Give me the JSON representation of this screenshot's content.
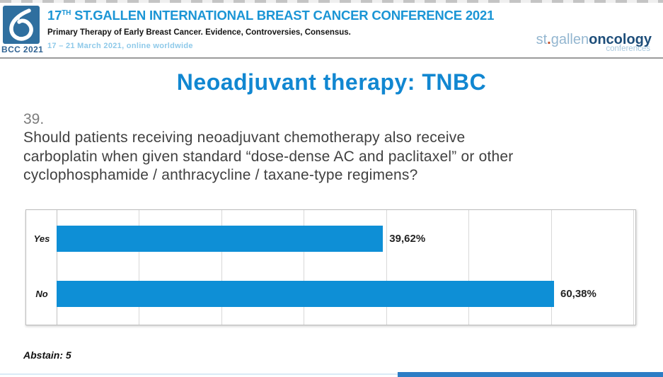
{
  "header": {
    "logo_badge": {
      "label": "BCC 2021"
    },
    "title_prefix": "17",
    "title_sup": "TH",
    "title_main": " ST.GALLEN INTERNATIONAL BREAST CANCER CONFERENCE 2021",
    "subtitle": "Primary Therapy of Early Breast Cancer. Evidence, Controversies, Consensus.",
    "dates": "17 – 21 March 2021, online worldwide",
    "brand": {
      "st": "st",
      "dot": ".",
      "gallen": "gallen",
      "oncology": "oncology",
      "conferences": "conferences"
    }
  },
  "slide": {
    "title": "Neoadjuvant therapy: TNBC",
    "question_number": "39.",
    "question_lines": [
      "Should patients receiving neoadjuvant chemotherapy also receive",
      "carboplatin when given standard “dose-dense AC and paclitaxel” or other",
      "cyclophosphamide / anthracycline / taxane-type regimens?"
    ],
    "abstain_note": "Abstain: 5"
  },
  "chart_data": {
    "type": "bar",
    "orientation": "horizontal",
    "title": "",
    "categories": [
      "Yes",
      "No"
    ],
    "values": [
      39.62,
      60.38
    ],
    "value_labels": [
      "39,62%",
      "60,38%"
    ],
    "xlim": [
      0,
      70
    ],
    "gridline_interval": 10,
    "grid_on": true,
    "legend": "none",
    "bar_color": "#0e8fd6"
  },
  "colors": {
    "conference_title_blue": "#1b95d5",
    "slide_title_blue": "#1187d1",
    "bar_blue": "#0e8fd6",
    "dates_light_blue": "#8ec9e9",
    "brand_navy": "#1e4e7a",
    "brand_light_blue": "#93b6d0",
    "brand_dot_orange": "#c3502c",
    "logo_blue": "#2f6f9f"
  }
}
